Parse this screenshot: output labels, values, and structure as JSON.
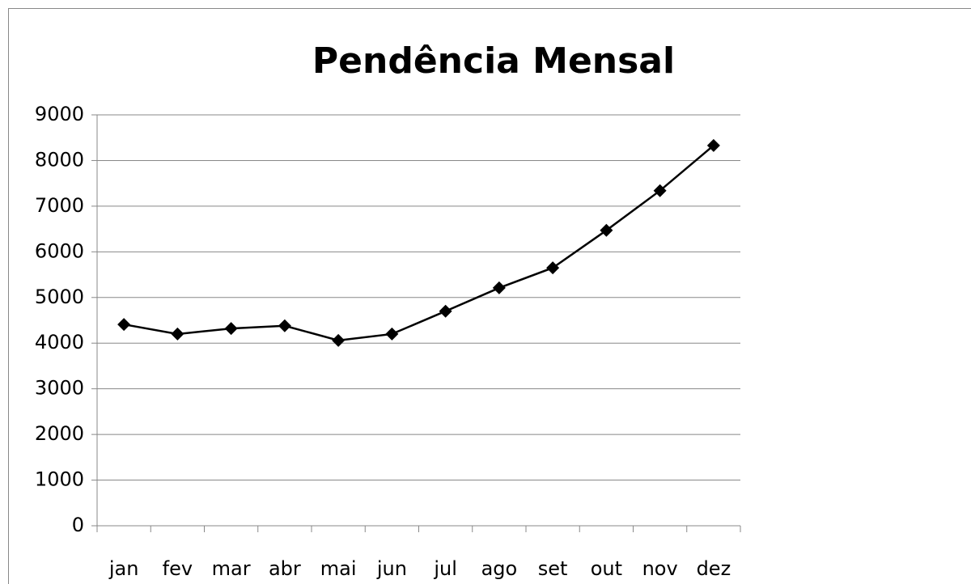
{
  "chart_data": {
    "type": "line",
    "title": "Pendência Mensal",
    "categories": [
      "jan",
      "fev",
      "mar",
      "abr",
      "mai",
      "jun",
      "jul",
      "ago",
      "set",
      "out",
      "nov",
      "dez"
    ],
    "values": [
      4410,
      4200,
      4320,
      4380,
      4060,
      4200,
      4700,
      5210,
      5650,
      6470,
      7340,
      8330
    ],
    "color": "#000000",
    "ylim": [
      0,
      9000
    ],
    "yticks": [
      0,
      1000,
      2000,
      3000,
      4000,
      5000,
      6000,
      7000,
      8000,
      9000
    ],
    "grid": true
  }
}
